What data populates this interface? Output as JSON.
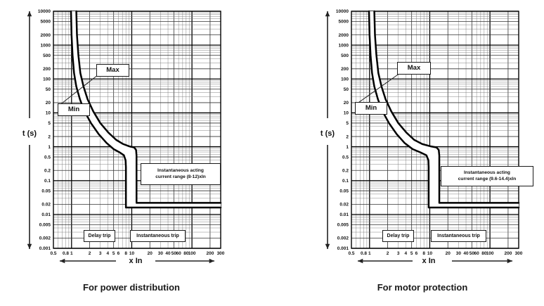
{
  "page": {
    "background": "#ffffff",
    "ink_color": "#111111",
    "grid_major_color": "#000000",
    "grid_mid_color": "#333333",
    "grid_minor_color": "#777777"
  },
  "chart_data": [
    {
      "type": "line",
      "title": "For power distribution",
      "xlabel": "x In",
      "ylabel": "t (s)",
      "xscale": "log",
      "yscale": "log",
      "xlim": [
        0.5,
        300
      ],
      "ylim": [
        0.001,
        10000
      ],
      "grid": true,
      "x_ticks": [
        0.5,
        0.8,
        1,
        2,
        3,
        4,
        5,
        6,
        8,
        10,
        20,
        30,
        40,
        50,
        60,
        80,
        100,
        200,
        300
      ],
      "y_ticks": [
        10000,
        5000,
        2000,
        1000,
        500,
        200,
        100,
        50,
        20,
        10,
        5,
        2,
        1,
        0.5,
        0.2,
        0.1,
        0.05,
        0.02,
        0.01,
        0.005,
        0.002,
        0.001
      ],
      "series": [
        {
          "name": "Min",
          "points": [
            [
              0.98,
              10000
            ],
            [
              1.0,
              2000
            ],
            [
              1.04,
              500
            ],
            [
              1.1,
              150
            ],
            [
              1.2,
              60
            ],
            [
              1.38,
              25
            ],
            [
              1.65,
              11
            ],
            [
              2.1,
              5
            ],
            [
              2.8,
              2.4
            ],
            [
              3.8,
              1.3
            ],
            [
              5.0,
              0.85
            ],
            [
              6.3,
              0.68
            ],
            [
              7.4,
              0.56
            ],
            [
              7.9,
              0.4
            ],
            [
              8,
              0.25
            ],
            [
              8,
              0.016
            ],
            [
              300,
              0.016
            ]
          ]
        },
        {
          "name": "Max",
          "points": [
            [
              1.2,
              10000
            ],
            [
              1.23,
              2000
            ],
            [
              1.3,
              500
            ],
            [
              1.4,
              150
            ],
            [
              1.58,
              60
            ],
            [
              1.85,
              25
            ],
            [
              2.3,
              11
            ],
            [
              3.0,
              5
            ],
            [
              4.1,
              2.6
            ],
            [
              5.5,
              1.6
            ],
            [
              7.2,
              1.2
            ],
            [
              9.2,
              1.02
            ],
            [
              11.0,
              0.95
            ],
            [
              11.8,
              0.8
            ],
            [
              12,
              0.55
            ],
            [
              12,
              0.022
            ],
            [
              300,
              0.022
            ]
          ]
        }
      ],
      "inst_note": [
        "Instantaneous acting",
        "current range (8-12)xIn"
      ],
      "zones": {
        "delay": "Delay trip",
        "instantaneous": "Instantaneous trip"
      }
    },
    {
      "type": "line",
      "title": "For motor protection",
      "xlabel": "x In",
      "ylabel": "t (s)",
      "xscale": "log",
      "yscale": "log",
      "xlim": [
        0.5,
        300
      ],
      "ylim": [
        0.001,
        10000
      ],
      "grid": true,
      "x_ticks": [
        0.5,
        0.8,
        1,
        2,
        3,
        4,
        5,
        6,
        8,
        10,
        20,
        30,
        40,
        50,
        60,
        80,
        100,
        200,
        300
      ],
      "y_ticks": [
        10000,
        5000,
        2000,
        1000,
        500,
        200,
        100,
        50,
        20,
        10,
        5,
        2,
        1,
        0.5,
        0.2,
        0.1,
        0.05,
        0.02,
        0.01,
        0.005,
        0.002,
        0.001
      ],
      "series": [
        {
          "name": "Min",
          "points": [
            [
              0.98,
              10000
            ],
            [
              1.0,
              2000
            ],
            [
              1.04,
              500
            ],
            [
              1.1,
              150
            ],
            [
              1.2,
              60
            ],
            [
              1.38,
              25
            ],
            [
              1.65,
              11
            ],
            [
              2.1,
              5
            ],
            [
              2.8,
              2.4
            ],
            [
              3.8,
              1.3
            ],
            [
              5.2,
              0.85
            ],
            [
              7.0,
              0.68
            ],
            [
              8.8,
              0.56
            ],
            [
              9.5,
              0.4
            ],
            [
              9.6,
              0.25
            ],
            [
              9.6,
              0.016
            ],
            [
              300,
              0.016
            ]
          ]
        },
        {
          "name": "Max",
          "points": [
            [
              1.2,
              10000
            ],
            [
              1.23,
              2000
            ],
            [
              1.3,
              500
            ],
            [
              1.4,
              150
            ],
            [
              1.58,
              60
            ],
            [
              1.85,
              25
            ],
            [
              2.3,
              11
            ],
            [
              3.0,
              5
            ],
            [
              4.1,
              2.6
            ],
            [
              5.5,
              1.6
            ],
            [
              7.5,
              1.2
            ],
            [
              10.5,
              1.02
            ],
            [
              13.0,
              0.95
            ],
            [
              14.1,
              0.8
            ],
            [
              14.4,
              0.55
            ],
            [
              14.4,
              0.022
            ],
            [
              300,
              0.022
            ]
          ]
        }
      ],
      "inst_note": [
        "Instantaneous acting",
        "current range (9.6-14.4)xIn"
      ],
      "zones": {
        "delay": "Delay trip",
        "instantaneous": "Instantaneous trip"
      }
    }
  ]
}
